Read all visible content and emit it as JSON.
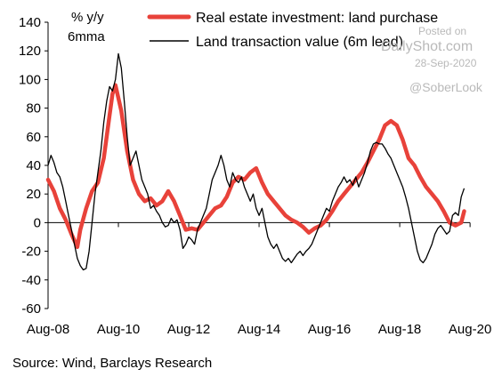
{
  "chart_data": {
    "type": "line",
    "unit_label_1": "% y/y",
    "unit_label_2": "6mma",
    "ylim": [
      -60,
      140
    ],
    "yticks": [
      -60,
      -40,
      -20,
      0,
      20,
      40,
      60,
      80,
      100,
      120,
      140
    ],
    "xlim": [
      "2008-08",
      "2020-11"
    ],
    "xticks": [
      {
        "label": "Aug-08",
        "date": "2008-08"
      },
      {
        "label": "Aug-10",
        "date": "2010-08"
      },
      {
        "label": "Aug-12",
        "date": "2012-08"
      },
      {
        "label": "Aug-14",
        "date": "2014-08"
      },
      {
        "label": "Aug-16",
        "date": "2016-08"
      },
      {
        "label": "Aug-18",
        "date": "2018-08"
      },
      {
        "label": "Aug-20",
        "date": "2020-08"
      }
    ],
    "grid": false,
    "legend_position": "top",
    "series": [
      {
        "name": "Real estate investment: land purchase",
        "color": "#e8423a",
        "points": [
          [
            "2008-08",
            30
          ],
          [
            "2008-10",
            22
          ],
          [
            "2008-12",
            10
          ],
          [
            "2009-02",
            2
          ],
          [
            "2009-04",
            -8
          ],
          [
            "2009-06",
            -17
          ],
          [
            "2009-07",
            -5
          ],
          [
            "2009-09",
            10
          ],
          [
            "2009-11",
            22
          ],
          [
            "2010-01",
            28
          ],
          [
            "2010-03",
            45
          ],
          [
            "2010-05",
            75
          ],
          [
            "2010-06",
            90
          ],
          [
            "2010-07",
            96
          ],
          [
            "2010-09",
            78
          ],
          [
            "2010-11",
            50
          ],
          [
            "2011-01",
            30
          ],
          [
            "2011-03",
            20
          ],
          [
            "2011-05",
            15
          ],
          [
            "2011-07",
            17
          ],
          [
            "2011-09",
            12
          ],
          [
            "2011-11",
            15
          ],
          [
            "2012-01",
            22
          ],
          [
            "2012-03",
            15
          ],
          [
            "2012-05",
            5
          ],
          [
            "2012-07",
            -5
          ],
          [
            "2012-09",
            -4
          ],
          [
            "2012-11",
            -5
          ],
          [
            "2013-01",
            0
          ],
          [
            "2013-03",
            5
          ],
          [
            "2013-05",
            10
          ],
          [
            "2013-07",
            12
          ],
          [
            "2013-09",
            18
          ],
          [
            "2013-11",
            28
          ],
          [
            "2014-01",
            32
          ],
          [
            "2014-03",
            30
          ],
          [
            "2014-05",
            35
          ],
          [
            "2014-07",
            38
          ],
          [
            "2014-09",
            28
          ],
          [
            "2014-11",
            20
          ],
          [
            "2015-01",
            15
          ],
          [
            "2015-03",
            10
          ],
          [
            "2015-05",
            5
          ],
          [
            "2015-07",
            2
          ],
          [
            "2015-09",
            0
          ],
          [
            "2015-11",
            -3
          ],
          [
            "2016-01",
            -7
          ],
          [
            "2016-03",
            -4
          ],
          [
            "2016-05",
            -2
          ],
          [
            "2016-07",
            2
          ],
          [
            "2016-09",
            8
          ],
          [
            "2016-11",
            15
          ],
          [
            "2017-01",
            20
          ],
          [
            "2017-03",
            25
          ],
          [
            "2017-05",
            30
          ],
          [
            "2017-07",
            35
          ],
          [
            "2017-09",
            42
          ],
          [
            "2017-11",
            50
          ],
          [
            "2018-01",
            58
          ],
          [
            "2018-03",
            68
          ],
          [
            "2018-05",
            71
          ],
          [
            "2018-07",
            68
          ],
          [
            "2018-09",
            58
          ],
          [
            "2018-11",
            45
          ],
          [
            "2019-01",
            40
          ],
          [
            "2019-03",
            32
          ],
          [
            "2019-05",
            25
          ],
          [
            "2019-07",
            20
          ],
          [
            "2019-09",
            15
          ],
          [
            "2019-11",
            8
          ],
          [
            "2020-01",
            0
          ],
          [
            "2020-03",
            -2
          ],
          [
            "2020-05",
            0
          ],
          [
            "2020-06",
            8
          ]
        ]
      },
      {
        "name": "Land transaction value (6m lead)",
        "color": "#000000",
        "points": [
          [
            "2008-08",
            40
          ],
          [
            "2008-09",
            47
          ],
          [
            "2008-10",
            42
          ],
          [
            "2008-11",
            35
          ],
          [
            "2008-12",
            32
          ],
          [
            "2009-01",
            25
          ],
          [
            "2009-02",
            15
          ],
          [
            "2009-03",
            5
          ],
          [
            "2009-04",
            -5
          ],
          [
            "2009-05",
            -15
          ],
          [
            "2009-06",
            -25
          ],
          [
            "2009-07",
            -30
          ],
          [
            "2009-08",
            -33
          ],
          [
            "2009-09",
            -32
          ],
          [
            "2009-10",
            -20
          ],
          [
            "2009-11",
            0
          ],
          [
            "2009-12",
            20
          ],
          [
            "2010-01",
            35
          ],
          [
            "2010-02",
            50
          ],
          [
            "2010-03",
            70
          ],
          [
            "2010-04",
            85
          ],
          [
            "2010-05",
            95
          ],
          [
            "2010-06",
            92
          ],
          [
            "2010-07",
            100
          ],
          [
            "2010-08",
            118
          ],
          [
            "2010-09",
            108
          ],
          [
            "2010-10",
            85
          ],
          [
            "2010-11",
            60
          ],
          [
            "2010-12",
            40
          ],
          [
            "2011-01",
            45
          ],
          [
            "2011-02",
            50
          ],
          [
            "2011-03",
            40
          ],
          [
            "2011-04",
            30
          ],
          [
            "2011-05",
            25
          ],
          [
            "2011-06",
            20
          ],
          [
            "2011-07",
            10
          ],
          [
            "2011-08",
            12
          ],
          [
            "2011-09",
            8
          ],
          [
            "2011-10",
            5
          ],
          [
            "2011-11",
            0
          ],
          [
            "2011-12",
            -3
          ],
          [
            "2012-01",
            -2
          ],
          [
            "2012-02",
            3
          ],
          [
            "2012-03",
            0
          ],
          [
            "2012-04",
            2
          ],
          [
            "2012-05",
            -5
          ],
          [
            "2012-06",
            -18
          ],
          [
            "2012-07",
            -15
          ],
          [
            "2012-08",
            -10
          ],
          [
            "2012-09",
            -12
          ],
          [
            "2012-10",
            -15
          ],
          [
            "2012-11",
            -5
          ],
          [
            "2012-12",
            0
          ],
          [
            "2013-01",
            5
          ],
          [
            "2013-02",
            10
          ],
          [
            "2013-03",
            20
          ],
          [
            "2013-04",
            30
          ],
          [
            "2013-05",
            35
          ],
          [
            "2013-06",
            40
          ],
          [
            "2013-07",
            47
          ],
          [
            "2013-08",
            40
          ],
          [
            "2013-09",
            30
          ],
          [
            "2013-10",
            25
          ],
          [
            "2013-11",
            35
          ],
          [
            "2013-12",
            30
          ],
          [
            "2014-01",
            28
          ],
          [
            "2014-02",
            32
          ],
          [
            "2014-03",
            25
          ],
          [
            "2014-04",
            20
          ],
          [
            "2014-05",
            15
          ],
          [
            "2014-06",
            20
          ],
          [
            "2014-07",
            10
          ],
          [
            "2014-08",
            5
          ],
          [
            "2014-09",
            10
          ],
          [
            "2014-10",
            0
          ],
          [
            "2014-11",
            -10
          ],
          [
            "2014-12",
            -15
          ],
          [
            "2015-01",
            -18
          ],
          [
            "2015-02",
            -15
          ],
          [
            "2015-03",
            -20
          ],
          [
            "2015-04",
            -25
          ],
          [
            "2015-05",
            -27
          ],
          [
            "2015-06",
            -25
          ],
          [
            "2015-07",
            -28
          ],
          [
            "2015-08",
            -25
          ],
          [
            "2015-09",
            -22
          ],
          [
            "2015-10",
            -20
          ],
          [
            "2015-11",
            -23
          ],
          [
            "2015-12",
            -20
          ],
          [
            "2016-01",
            -18
          ],
          [
            "2016-02",
            -15
          ],
          [
            "2016-03",
            -10
          ],
          [
            "2016-04",
            -5
          ],
          [
            "2016-05",
            0
          ],
          [
            "2016-06",
            5
          ],
          [
            "2016-07",
            10
          ],
          [
            "2016-08",
            8
          ],
          [
            "2016-09",
            15
          ],
          [
            "2016-10",
            20
          ],
          [
            "2016-11",
            25
          ],
          [
            "2016-12",
            28
          ],
          [
            "2017-01",
            32
          ],
          [
            "2017-02",
            28
          ],
          [
            "2017-03",
            30
          ],
          [
            "2017-04",
            26
          ],
          [
            "2017-05",
            32
          ],
          [
            "2017-06",
            25
          ],
          [
            "2017-07",
            30
          ],
          [
            "2017-08",
            35
          ],
          [
            "2017-09",
            42
          ],
          [
            "2017-10",
            50
          ],
          [
            "2017-11",
            55
          ],
          [
            "2017-12",
            56
          ],
          [
            "2018-01",
            55
          ],
          [
            "2018-02",
            55
          ],
          [
            "2018-03",
            52
          ],
          [
            "2018-04",
            48
          ],
          [
            "2018-05",
            45
          ],
          [
            "2018-06",
            40
          ],
          [
            "2018-07",
            35
          ],
          [
            "2018-08",
            30
          ],
          [
            "2018-09",
            25
          ],
          [
            "2018-10",
            18
          ],
          [
            "2018-11",
            10
          ],
          [
            "2018-12",
            0
          ],
          [
            "2019-01",
            -10
          ],
          [
            "2019-02",
            -20
          ],
          [
            "2019-03",
            -26
          ],
          [
            "2019-04",
            -28
          ],
          [
            "2019-05",
            -25
          ],
          [
            "2019-06",
            -20
          ],
          [
            "2019-07",
            -15
          ],
          [
            "2019-08",
            -8
          ],
          [
            "2019-09",
            -4
          ],
          [
            "2019-10",
            -2
          ],
          [
            "2019-11",
            -5
          ],
          [
            "2019-12",
            -8
          ],
          [
            "2020-01",
            -6
          ],
          [
            "2020-02",
            5
          ],
          [
            "2020-03",
            7
          ],
          [
            "2020-04",
            5
          ],
          [
            "2020-05",
            18
          ],
          [
            "2020-06",
            24
          ]
        ]
      }
    ],
    "source": "Source: Wind, Barclays Research"
  },
  "watermark": {
    "line1": "Posted on",
    "line2": "DailyShot.com",
    "line3": "28-Sep-2020",
    "handle": "@SoberLook"
  }
}
